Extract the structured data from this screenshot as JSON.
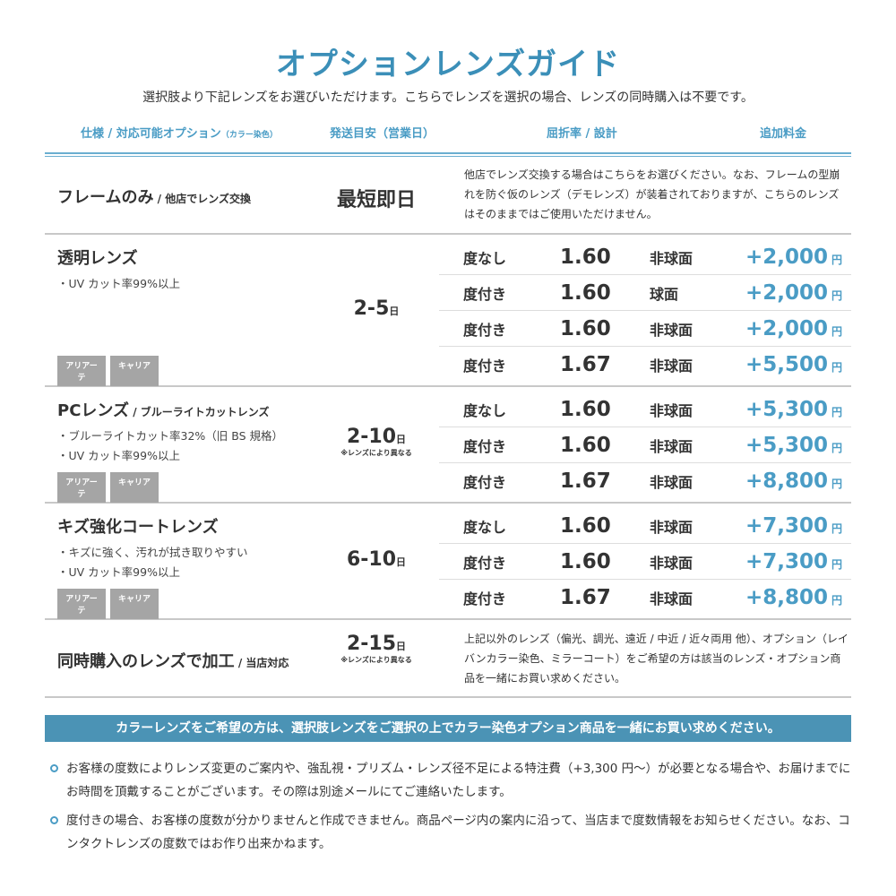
{
  "title": "オプションレンズガイド",
  "subtitle": "選択肢より下記レンズをお選びいただけます。こちらでレンズを選択の場合、レンズの同時購入は不要です。",
  "headers": {
    "spec": "仕様 / 対応可能オプション",
    "spec_note": "（カラー染色）",
    "ship": "発送目安（営業日）",
    "lens": "屈折率 / 設計",
    "price": "追加料金"
  },
  "frame_only": {
    "name": "フレームのみ",
    "sub": " / 他店でレンズ交換",
    "ship": "最短即日",
    "desc": "他店でレンズ交換する場合はこちらをお選びください。なお、フレームの型崩れを防ぐ仮のレンズ（デモレンズ）が装着されておりますが、こちらのレンズはそのままではご使用いただけません。"
  },
  "sections": [
    {
      "name": "透明レンズ",
      "sub": "",
      "points": [
        "・UV カット率99%以上"
      ],
      "tags": [
        "アリアーテ",
        "キャリア"
      ],
      "ship": "2-5",
      "ship_unit": "日",
      "ship_note": "",
      "rows": [
        [
          "度なし",
          "1.60",
          "非球面",
          "+2,000"
        ],
        [
          "度付き",
          "1.60",
          "球面",
          "+2,000"
        ],
        [
          "度付き",
          "1.60",
          "非球面",
          "+2,000"
        ],
        [
          "度付き",
          "1.67",
          "非球面",
          "+5,500"
        ]
      ]
    },
    {
      "name": "PCレンズ",
      "sub": " / ブルーライトカットレンズ",
      "points": [
        "・ブルーライトカット率32%（旧 BS 規格）",
        "・UV カット率99%以上"
      ],
      "tags": [
        "アリアーテ",
        "キャリア"
      ],
      "ship": "2-10",
      "ship_unit": "日",
      "ship_note": "※レンズにより異なる",
      "rows": [
        [
          "度なし",
          "1.60",
          "非球面",
          "+5,300"
        ],
        [
          "度付き",
          "1.60",
          "非球面",
          "+5,300"
        ],
        [
          "度付き",
          "1.67",
          "非球面",
          "+8,800"
        ]
      ]
    },
    {
      "name": "キズ強化コートレンズ",
      "sub": "",
      "points": [
        "・キズに強く、汚れが拭き取りやすい",
        "・UV カット率99%以上"
      ],
      "tags": [
        "アリアーテ",
        "キャリア"
      ],
      "ship": "6-10",
      "ship_unit": "日",
      "ship_note": "",
      "rows": [
        [
          "度なし",
          "1.60",
          "非球面",
          "+7,300"
        ],
        [
          "度付き",
          "1.60",
          "非球面",
          "+7,300"
        ],
        [
          "度付き",
          "1.67",
          "非球面",
          "+8,800"
        ]
      ]
    }
  ],
  "price_unit": "円",
  "combined": {
    "name": "同時購入のレンズで加工",
    "sub": " / 当店対応",
    "ship": "2-15",
    "ship_unit": "日",
    "ship_note": "※レンズにより異なる",
    "desc": "上記以外のレンズ（偏光、調光、遠近 / 中近 / 近々両用 他）、オプション（レイバンカラー染色、ミラーコート）をご希望の方は該当のレンズ・オプション商品を一緒にお買い求めください。"
  },
  "banner": "カラーレンズをご希望の方は、選択肢レンズをご選択の上でカラー染色オプション商品を一緒にお買い求めください。",
  "notes": [
    "お客様の度数によりレンズ変更のご案内や、強乱視・プリズム・レンズ径不足による特注費（+3,300 円～）が必要となる場合や、お届けまでにお時間を頂戴することがございます。その際は別途メールにてご連絡いたします。",
    "度付きの場合、お客様の度数が分かりませんと作成できません。商品ページ内の案内に沿って、当店まで度数情報をお知らせください。なお、コンタクトレンズの度数ではお作り出来かねます。"
  ],
  "colors": {
    "accent": "#4a9cc5",
    "banner": "#4b93b5",
    "tag": "#a5a5a5"
  }
}
